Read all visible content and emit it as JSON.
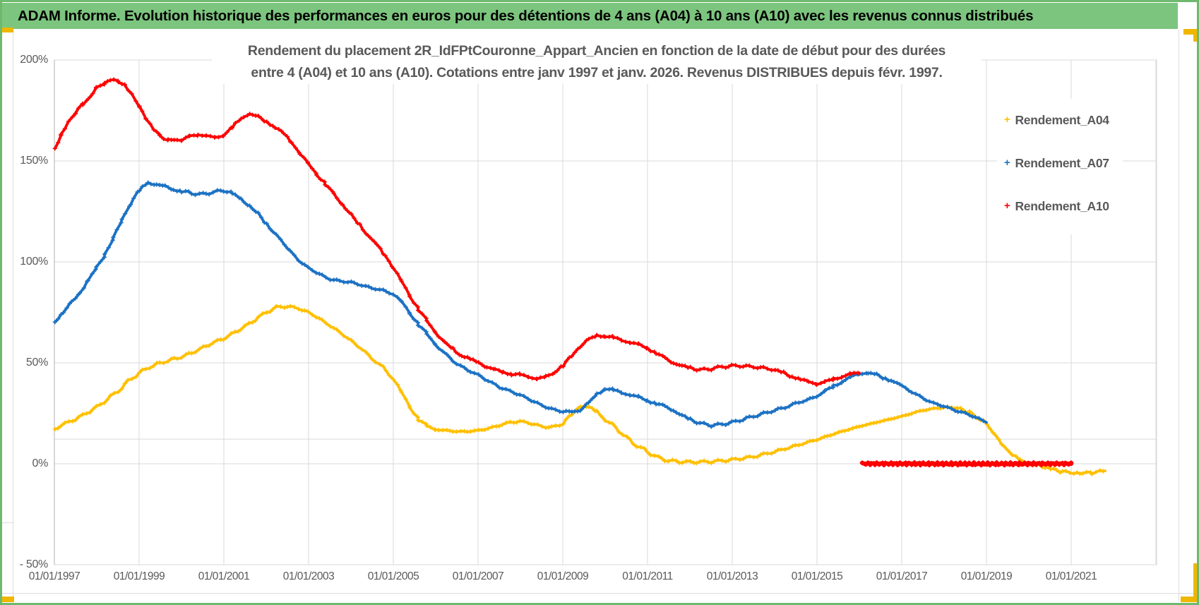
{
  "banner": {
    "text": "ADAM Informe. Evolution historique des performances en euros pour des détentions de 4 ans (A04) à 10 ans (A10) avec les revenus connus distribués"
  },
  "chart": {
    "title_line1": "Rendement du placement 2R_IdFPtCouronne_Appart_Ancien en fonction de la date de début pour des durées",
    "title_line2": "entre 4 (A04) et 10 ans (A10). Cotations entre janv 1997 et janv. 2026. Revenus DISTRIBUES depuis févr. 1997."
  },
  "chart_data": {
    "type": "scatter",
    "marker_glyph": "+",
    "title": "Rendement du placement 2R_IdFPtCouronne_Appart_Ancien en fonction de la date de début pour des durées entre 4 (A04) et 10 ans (A10). Cotations entre janv 1997 et janv. 2026. Revenus DISTRIBUES depuis févr. 1997.",
    "legend_position": "right",
    "grid": true,
    "y_axis": {
      "unit": "%",
      "min": -50,
      "max": 200,
      "major_unit": 50,
      "tick_values": [
        200,
        150,
        100,
        50,
        0,
        -50
      ],
      "tick_labels": [
        "200%",
        "150%",
        "100%",
        "50%",
        "0%",
        "- 50%"
      ]
    },
    "x_axis": {
      "start_year": 1997,
      "end_year": 2023,
      "gridline_every_years": 2,
      "tick_years": [
        1997,
        1999,
        2001,
        2003,
        2005,
        2007,
        2009,
        2011,
        2013,
        2015,
        2017,
        2019,
        2021
      ],
      "labels": [
        "01/01/1997",
        "01/01/1999",
        "01/01/2001",
        "01/01/2003",
        "01/01/2005",
        "01/01/2007",
        "01/01/2009",
        "01/01/2011",
        "01/01/2013",
        "01/01/2015",
        "01/01/2017",
        "01/01/2019",
        "01/01/2021"
      ]
    },
    "extra_horizontal_line_value": 12.2,
    "series": [
      {
        "name": "Rendement_A04",
        "color": "#FFC000",
        "points": [
          [
            1997.0,
            17
          ],
          [
            1997.25,
            20
          ],
          [
            1997.5,
            22
          ],
          [
            1997.75,
            25
          ],
          [
            1998.0,
            28
          ],
          [
            1998.25,
            32
          ],
          [
            1998.5,
            36
          ],
          [
            1998.75,
            41
          ],
          [
            1999.0,
            45
          ],
          [
            1999.25,
            48
          ],
          [
            1999.5,
            50
          ],
          [
            1999.75,
            51.5
          ],
          [
            2000.0,
            53
          ],
          [
            2000.25,
            55
          ],
          [
            2000.5,
            57.5
          ],
          [
            2000.75,
            60
          ],
          [
            2001.0,
            62
          ],
          [
            2001.25,
            65
          ],
          [
            2001.5,
            68
          ],
          [
            2001.75,
            71.5
          ],
          [
            2002.0,
            75
          ],
          [
            2002.25,
            77.5
          ],
          [
            2002.5,
            78
          ],
          [
            2002.75,
            77
          ],
          [
            2003.0,
            75
          ],
          [
            2003.25,
            72
          ],
          [
            2003.5,
            68.5
          ],
          [
            2003.75,
            65
          ],
          [
            2004.0,
            61
          ],
          [
            2004.25,
            57
          ],
          [
            2004.5,
            52
          ],
          [
            2004.75,
            48
          ],
          [
            2005.0,
            42
          ],
          [
            2005.2,
            35
          ],
          [
            2005.4,
            28
          ],
          [
            2005.6,
            22
          ],
          [
            2005.8,
            18.5
          ],
          [
            2006.0,
            17
          ],
          [
            2006.25,
            16.5
          ],
          [
            2006.5,
            16
          ],
          [
            2006.75,
            16
          ],
          [
            2007.0,
            16.5
          ],
          [
            2007.25,
            17.5
          ],
          [
            2007.5,
            19
          ],
          [
            2007.75,
            20.5
          ],
          [
            2008.0,
            21
          ],
          [
            2008.25,
            20
          ],
          [
            2008.5,
            18.5
          ],
          [
            2008.75,
            18
          ],
          [
            2009.0,
            20
          ],
          [
            2009.2,
            24
          ],
          [
            2009.4,
            28.5
          ],
          [
            2009.6,
            28
          ],
          [
            2009.8,
            26
          ],
          [
            2010.0,
            22
          ],
          [
            2010.25,
            18
          ],
          [
            2010.5,
            13
          ],
          [
            2010.75,
            9
          ],
          [
            2011.0,
            6
          ],
          [
            2011.25,
            3
          ],
          [
            2011.5,
            1.5
          ],
          [
            2011.75,
            1
          ],
          [
            2012.0,
            0.8
          ],
          [
            2012.5,
            1
          ],
          [
            2013.0,
            2
          ],
          [
            2013.5,
            3.5
          ],
          [
            2014.0,
            6
          ],
          [
            2014.5,
            9
          ],
          [
            2015.0,
            12
          ],
          [
            2015.5,
            15.5
          ],
          [
            2016.0,
            18.5
          ],
          [
            2016.5,
            21
          ],
          [
            2017.0,
            23.5
          ],
          [
            2017.5,
            26.5
          ],
          [
            2018.0,
            28
          ],
          [
            2018.3,
            27.5
          ],
          [
            2018.6,
            25.5
          ],
          [
            2019.0,
            20
          ],
          [
            2019.2,
            14
          ],
          [
            2019.4,
            9
          ],
          [
            2019.6,
            4.5
          ],
          [
            2019.8,
            1.5
          ],
          [
            2020.0,
            0
          ],
          [
            2020.3,
            -1
          ],
          [
            2020.5,
            -2.5
          ],
          [
            2020.8,
            -4
          ],
          [
            2021.2,
            -4.5
          ],
          [
            2021.5,
            -4.5
          ],
          [
            2021.8,
            -3.5
          ]
        ]
      },
      {
        "name": "Rendement_A07",
        "color": "#1C72C4",
        "points": [
          [
            1997.0,
            70
          ],
          [
            1997.2,
            75
          ],
          [
            1997.4,
            80
          ],
          [
            1997.6,
            85
          ],
          [
            1997.8,
            91
          ],
          [
            1998.0,
            97
          ],
          [
            1998.2,
            104
          ],
          [
            1998.4,
            112
          ],
          [
            1998.6,
            121
          ],
          [
            1998.8,
            129
          ],
          [
            1999.0,
            135
          ],
          [
            1999.2,
            139
          ],
          [
            1999.4,
            138.5
          ],
          [
            1999.6,
            137.5
          ],
          [
            1999.8,
            136
          ],
          [
            2000.0,
            135
          ],
          [
            2000.25,
            134
          ],
          [
            2000.5,
            133.5
          ],
          [
            2000.75,
            134.5
          ],
          [
            2001.0,
            135.5
          ],
          [
            2001.2,
            134
          ],
          [
            2001.4,
            131
          ],
          [
            2001.6,
            128
          ],
          [
            2001.8,
            124
          ],
          [
            2002.0,
            119
          ],
          [
            2002.25,
            113
          ],
          [
            2002.5,
            107
          ],
          [
            2002.75,
            101
          ],
          [
            2003.0,
            97
          ],
          [
            2003.25,
            94
          ],
          [
            2003.5,
            91.5
          ],
          [
            2003.75,
            90.5
          ],
          [
            2004.0,
            90
          ],
          [
            2004.25,
            88.5
          ],
          [
            2004.5,
            87
          ],
          [
            2004.75,
            86
          ],
          [
            2005.0,
            84
          ],
          [
            2005.2,
            80
          ],
          [
            2005.4,
            74.5
          ],
          [
            2005.6,
            69
          ],
          [
            2005.8,
            64
          ],
          [
            2006.0,
            59
          ],
          [
            2006.25,
            54
          ],
          [
            2006.5,
            49.5
          ],
          [
            2006.75,
            46.5
          ],
          [
            2007.0,
            44
          ],
          [
            2007.25,
            41
          ],
          [
            2007.5,
            38
          ],
          [
            2007.75,
            36
          ],
          [
            2008.0,
            34
          ],
          [
            2008.25,
            31.5
          ],
          [
            2008.5,
            29
          ],
          [
            2008.75,
            27
          ],
          [
            2009.0,
            26
          ],
          [
            2009.2,
            25.5
          ],
          [
            2009.4,
            26.5
          ],
          [
            2009.6,
            30
          ],
          [
            2009.8,
            34.5
          ],
          [
            2010.0,
            37.5
          ],
          [
            2010.2,
            36.5
          ],
          [
            2010.4,
            35
          ],
          [
            2010.6,
            34
          ],
          [
            2010.8,
            33
          ],
          [
            2011.0,
            31.5
          ],
          [
            2011.2,
            30
          ],
          [
            2011.4,
            28.5
          ],
          [
            2011.6,
            26.5
          ],
          [
            2011.8,
            24
          ],
          [
            2012.0,
            22
          ],
          [
            2012.25,
            20
          ],
          [
            2012.5,
            19
          ],
          [
            2012.75,
            19.5
          ],
          [
            2013.0,
            20.5
          ],
          [
            2013.25,
            22
          ],
          [
            2013.5,
            23.5
          ],
          [
            2013.75,
            25
          ],
          [
            2014.0,
            26.5
          ],
          [
            2014.25,
            28
          ],
          [
            2014.5,
            30
          ],
          [
            2014.75,
            31.5
          ],
          [
            2015.0,
            33.5
          ],
          [
            2015.2,
            36
          ],
          [
            2015.4,
            38.5
          ],
          [
            2015.6,
            41
          ],
          [
            2015.8,
            43
          ],
          [
            2016.0,
            44.5
          ],
          [
            2016.2,
            45
          ],
          [
            2016.4,
            44
          ],
          [
            2016.6,
            42.5
          ],
          [
            2016.8,
            41
          ],
          [
            2017.0,
            38.5
          ],
          [
            2017.25,
            35.5
          ],
          [
            2017.5,
            32.5
          ],
          [
            2017.75,
            30
          ],
          [
            2018.0,
            28.5
          ],
          [
            2018.25,
            26.5
          ],
          [
            2018.5,
            25
          ],
          [
            2018.75,
            23
          ],
          [
            2019.0,
            20.5
          ]
        ]
      },
      {
        "name": "Rendement_A10",
        "color": "#FE0000",
        "points": [
          [
            1997.0,
            156
          ],
          [
            1997.17,
            163
          ],
          [
            1997.33,
            169
          ],
          [
            1997.5,
            174
          ],
          [
            1997.67,
            178
          ],
          [
            1997.83,
            182
          ],
          [
            1998.0,
            186
          ],
          [
            1998.17,
            188.5
          ],
          [
            1998.33,
            190
          ],
          [
            1998.5,
            189.5
          ],
          [
            1998.67,
            187.5
          ],
          [
            1998.83,
            183
          ],
          [
            1999.0,
            177
          ],
          [
            1999.17,
            171
          ],
          [
            1999.33,
            166
          ],
          [
            1999.5,
            162.5
          ],
          [
            1999.67,
            160.5
          ],
          [
            1999.83,
            160
          ],
          [
            2000.0,
            160.5
          ],
          [
            2000.2,
            162
          ],
          [
            2000.4,
            163
          ],
          [
            2000.6,
            162.5
          ],
          [
            2000.8,
            161.5
          ],
          [
            2001.0,
            163
          ],
          [
            2001.2,
            166.5
          ],
          [
            2001.4,
            170.5
          ],
          [
            2001.6,
            173.5
          ],
          [
            2001.8,
            172
          ],
          [
            2002.0,
            169.5
          ],
          [
            2002.2,
            167
          ],
          [
            2002.4,
            163.5
          ],
          [
            2002.6,
            159
          ],
          [
            2002.8,
            153.5
          ],
          [
            2003.0,
            148.5
          ],
          [
            2003.2,
            143.5
          ],
          [
            2003.4,
            138.5
          ],
          [
            2003.6,
            133.5
          ],
          [
            2003.8,
            128.5
          ],
          [
            2004.0,
            123.5
          ],
          [
            2004.2,
            118.5
          ],
          [
            2004.4,
            113.5
          ],
          [
            2004.6,
            108.5
          ],
          [
            2004.8,
            103
          ],
          [
            2005.0,
            97
          ],
          [
            2005.2,
            90
          ],
          [
            2005.4,
            83
          ],
          [
            2005.6,
            76.5
          ],
          [
            2005.8,
            70.5
          ],
          [
            2006.0,
            65
          ],
          [
            2006.2,
            60.5
          ],
          [
            2006.4,
            57
          ],
          [
            2006.6,
            54
          ],
          [
            2006.8,
            52
          ],
          [
            2007.0,
            50
          ],
          [
            2007.2,
            48
          ],
          [
            2007.4,
            46.5
          ],
          [
            2007.6,
            45.5
          ],
          [
            2007.8,
            44.5
          ],
          [
            2008.0,
            44
          ],
          [
            2008.2,
            43
          ],
          [
            2008.4,
            42
          ],
          [
            2008.6,
            43
          ],
          [
            2008.8,
            45.5
          ],
          [
            2009.0,
            48.5
          ],
          [
            2009.2,
            53
          ],
          [
            2009.4,
            58
          ],
          [
            2009.6,
            61.5
          ],
          [
            2009.8,
            63.5
          ],
          [
            2010.0,
            63.5
          ],
          [
            2010.2,
            62.5
          ],
          [
            2010.4,
            61
          ],
          [
            2010.6,
            60
          ],
          [
            2010.8,
            59
          ],
          [
            2011.0,
            57.5
          ],
          [
            2011.2,
            55
          ],
          [
            2011.4,
            52.5
          ],
          [
            2011.6,
            50
          ],
          [
            2011.8,
            48.5
          ],
          [
            2012.0,
            47.5
          ],
          [
            2012.25,
            46.5
          ],
          [
            2012.5,
            47
          ],
          [
            2012.75,
            48
          ],
          [
            2013.0,
            48.5
          ],
          [
            2013.25,
            48.5
          ],
          [
            2013.5,
            48
          ],
          [
            2013.75,
            47.5
          ],
          [
            2014.0,
            46.5
          ],
          [
            2014.2,
            45
          ],
          [
            2014.4,
            43.5
          ],
          [
            2014.6,
            42
          ],
          [
            2014.8,
            40.5
          ],
          [
            2015.0,
            39.5
          ],
          [
            2015.2,
            40.5
          ],
          [
            2015.4,
            42
          ],
          [
            2015.6,
            43.5
          ],
          [
            2015.8,
            44.5
          ],
          [
            2016.0,
            45
          ]
        ],
        "zero_segment": {
          "from_year": 2016.08,
          "to_year": 2021.0,
          "value": 0
        }
      }
    ]
  }
}
